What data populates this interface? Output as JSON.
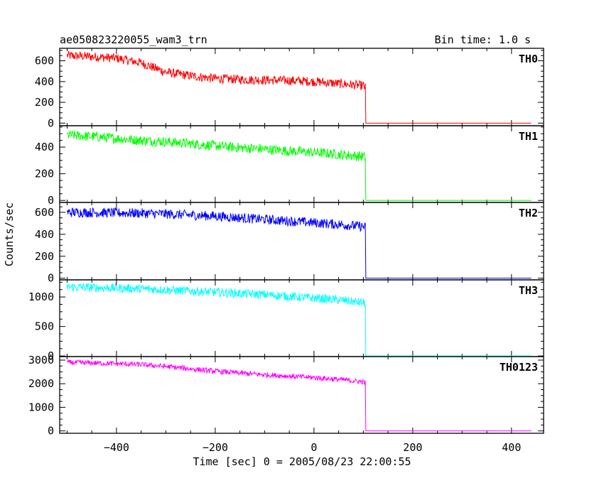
{
  "header": {
    "title": "ae050823220055_wam3_trn",
    "bin_time": "Bin time: 1.0 s"
  },
  "chart_data": {
    "type": "line",
    "xlabel": "Time [sec] 0 = 2005/08/23 22:00:55",
    "ylabel": "Counts/sec",
    "xlim": [
      -515,
      465
    ],
    "x_ticks": [
      -400,
      -200,
      0,
      200,
      400
    ],
    "x_tick_labels": [
      "−400",
      "−200",
      "0",
      "200",
      "400"
    ],
    "grid": false,
    "panels": [
      {
        "name": "TH0",
        "color": "#ff0000",
        "ylim": [
          -25,
          720
        ],
        "y_ticks": [
          0,
          200,
          400,
          600
        ],
        "y_tick_labels": [
          "0",
          "200",
          "400",
          "600"
        ],
        "x": [
          -500,
          -450,
          -400,
          -350,
          -300,
          -250,
          -200,
          -150,
          -100,
          -50,
          0,
          50,
          100,
          104,
          105,
          440
        ],
        "y": [
          650,
          640,
          625,
          580,
          490,
          455,
          430,
          420,
          415,
          410,
          400,
          380,
          360,
          340,
          0,
          0
        ],
        "noise": 45
      },
      {
        "name": "TH1",
        "color": "#00ff00",
        "ylim": [
          -15,
          560
        ],
        "y_ticks": [
          0,
          200,
          400
        ],
        "y_tick_labels": [
          "0",
          "200",
          "400"
        ],
        "x": [
          -500,
          -450,
          -400,
          -350,
          -300,
          -250,
          -200,
          -150,
          -100,
          -50,
          0,
          50,
          100,
          104,
          105,
          440
        ],
        "y": [
          490,
          480,
          465,
          450,
          440,
          425,
          410,
          395,
          385,
          370,
          360,
          345,
          330,
          320,
          0,
          0
        ],
        "noise": 38
      },
      {
        "name": "TH2",
        "color": "#0000ff",
        "ylim": [
          -15,
          690
        ],
        "y_ticks": [
          0,
          200,
          400,
          600
        ],
        "y_tick_labels": [
          "0",
          "200",
          "400",
          "600"
        ],
        "x": [
          -500,
          -450,
          -400,
          -350,
          -300,
          -250,
          -200,
          -150,
          -100,
          -50,
          0,
          50,
          100,
          104,
          105,
          440
        ],
        "y": [
          600,
          598,
          595,
          592,
          585,
          575,
          565,
          550,
          535,
          520,
          505,
          490,
          470,
          460,
          0,
          0
        ],
        "noise": 45
      },
      {
        "name": "TH3",
        "color": "#00ffff",
        "ylim": [
          -10,
          1290
        ],
        "y_ticks": [
          0,
          500,
          1000
        ],
        "y_tick_labels": [
          "0",
          "500",
          "1000"
        ],
        "x": [
          -500,
          -450,
          -400,
          -350,
          -300,
          -250,
          -200,
          -150,
          -100,
          -50,
          0,
          50,
          100,
          104,
          105,
          440
        ],
        "y": [
          1170,
          1160,
          1150,
          1140,
          1120,
          1100,
          1080,
          1060,
          1040,
          1010,
          980,
          950,
          900,
          880,
          0,
          0
        ],
        "noise": 75
      },
      {
        "name": "TH0123",
        "color": "#ff00ff",
        "ylim": [
          -100,
          3150
        ],
        "y_ticks": [
          0,
          1000,
          2000,
          3000
        ],
        "y_tick_labels": [
          "0",
          "1000",
          "2000",
          "3000"
        ],
        "x": [
          -500,
          -450,
          -400,
          -350,
          -300,
          -250,
          -200,
          -150,
          -100,
          -50,
          0,
          50,
          100,
          104,
          105,
          440
        ],
        "y": [
          2900,
          2880,
          2850,
          2810,
          2730,
          2630,
          2530,
          2450,
          2380,
          2320,
          2260,
          2180,
          2080,
          2040,
          0,
          0
        ],
        "noise": 110
      }
    ]
  }
}
